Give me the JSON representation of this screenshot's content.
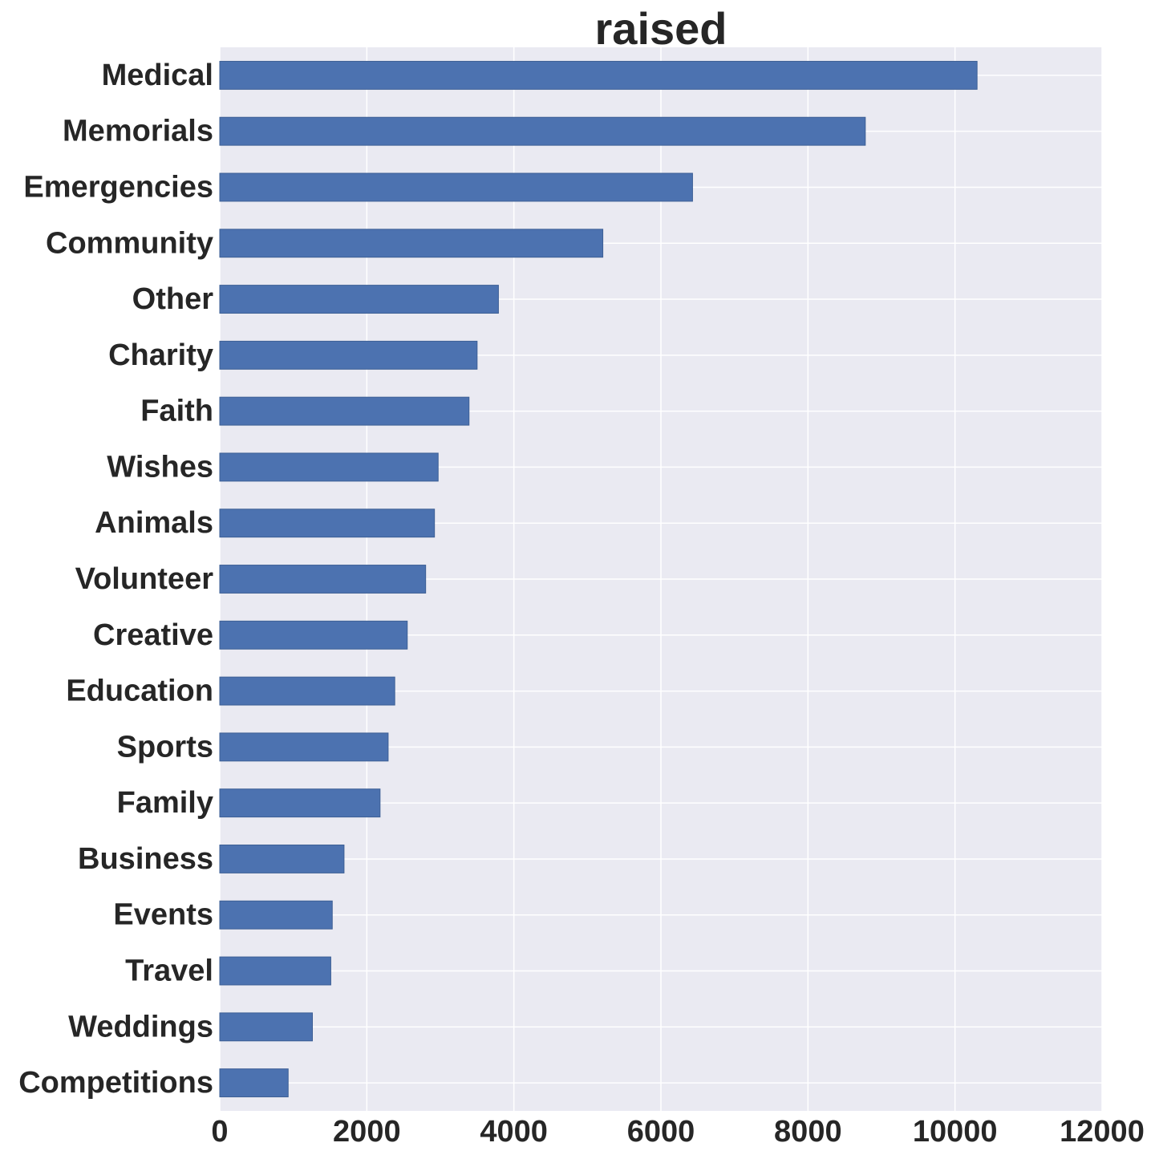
{
  "chart_data": {
    "type": "bar",
    "orientation": "horizontal",
    "title": "raised",
    "xlabel": "",
    "ylabel": "",
    "categories": [
      "Medical",
      "Memorials",
      "Emergencies",
      "Community",
      "Other",
      "Charity",
      "Faith",
      "Wishes",
      "Animals",
      "Volunteer",
      "Creative",
      "Education",
      "Sports",
      "Family",
      "Business",
      "Events",
      "Travel",
      "Weddings",
      "Competitions"
    ],
    "values": [
      10300,
      8780,
      6430,
      5210,
      3790,
      3500,
      3390,
      2970,
      2920,
      2800,
      2550,
      2380,
      2290,
      2180,
      1690,
      1530,
      1510,
      1260,
      930
    ],
    "xlim": [
      0,
      12000
    ],
    "xticks": [
      0,
      2000,
      4000,
      6000,
      8000,
      10000,
      12000
    ],
    "xtick_labels": [
      "0",
      "2000",
      "4000",
      "6000",
      "8000",
      "10000",
      "12000"
    ],
    "grid": true,
    "colors": {
      "bar": "#4c72b0",
      "bar_edge": "#3d5f95",
      "background": "#eaeaf2",
      "grid": "#ffffff",
      "text": "#262626"
    }
  }
}
